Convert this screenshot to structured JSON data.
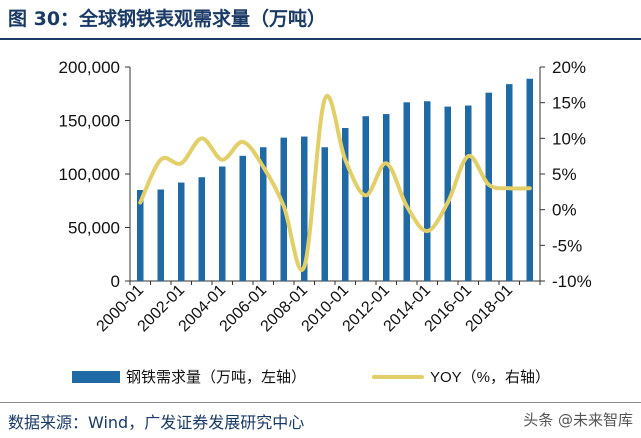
{
  "title": "图 30：全球钢铁表观需求量（万吨）",
  "source": "数据来源：Wind，广发证券发展研究中心",
  "watermark": "头条 @未来智库",
  "chart_data": {
    "type": "bar+line",
    "x": [
      "2000-01",
      "2001-01",
      "2002-01",
      "2003-01",
      "2004-01",
      "2005-01",
      "2006-01",
      "2007-01",
      "2008-01",
      "2009-01",
      "2010-01",
      "2011-01",
      "2012-01",
      "2013-01",
      "2014-01",
      "2015-01",
      "2016-01",
      "2017-01",
      "2018-01",
      "2019-01"
    ],
    "xticks": [
      "2000-01",
      "2002-01",
      "2004-01",
      "2006-01",
      "2008-01",
      "2010-01",
      "2012-01",
      "2014-01",
      "2016-01",
      "2018-01"
    ],
    "series": [
      {
        "name": "钢铁需求量（万吨，左轴）",
        "type": "bar",
        "axis": "left",
        "color": "#1f6aa5",
        "values": [
          85000,
          85500,
          92000,
          97000,
          107000,
          117000,
          125000,
          134000,
          135000,
          125000,
          143000,
          154000,
          156000,
          167000,
          168000,
          163000,
          164000,
          176000,
          184000,
          189000
        ]
      },
      {
        "name": "YOY（%，右轴）",
        "type": "line",
        "axis": "right",
        "color": "#e3cf6a",
        "values": [
          1.0,
          7.0,
          6.5,
          10.0,
          7.0,
          9.5,
          6.0,
          0.5,
          -8.0,
          15.5,
          7.0,
          2.0,
          6.5,
          0.5,
          -3.0,
          1.0,
          7.5,
          3.5,
          3.0,
          3.0
        ]
      }
    ],
    "yleft": {
      "min": 0,
      "max": 200000,
      "ticks": [
        0,
        50000,
        100000,
        150000,
        200000
      ],
      "labels": [
        "0",
        "50,000",
        "100,000",
        "150,000",
        "200,000"
      ]
    },
    "yright": {
      "min": -10,
      "max": 20,
      "ticks": [
        -10,
        -5,
        0,
        5,
        10,
        15,
        20
      ],
      "labels": [
        "-10%",
        "-5%",
        "0%",
        "5%",
        "10%",
        "15%",
        "20%"
      ]
    },
    "grid": false,
    "legend_position": "bottom"
  }
}
